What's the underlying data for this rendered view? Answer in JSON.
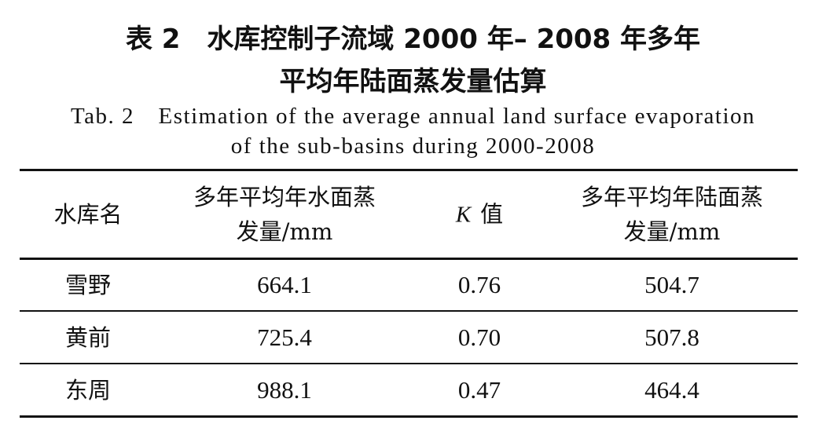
{
  "title": [
    "表 2　水库控制子流域 2000 年– 2008 年多年",
    "平均年陆面蒸发量估算"
  ],
  "caption": [
    "Tab. 2　Estimation of the average annual land surface evaporation",
    "of the sub-basins during 2000-2008"
  ],
  "table": {
    "header": [
      [
        "水库名"
      ],
      [
        "多年平均年水面蒸",
        "发量/mm"
      ],
      {
        "var": "K",
        "text": "值"
      },
      [
        "多年平均年陆面蒸",
        "发量/mm"
      ]
    ],
    "rows": [
      [
        "雪野",
        "664.1",
        "0.76",
        "504.7"
      ],
      [
        "黄前",
        "725.4",
        "0.70",
        "507.8"
      ],
      [
        "东周",
        "988.1",
        "0.47",
        "464.4"
      ]
    ]
  }
}
